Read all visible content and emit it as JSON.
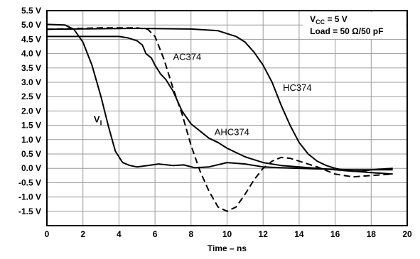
{
  "chart_data": {
    "type": "line",
    "xlabel": "Time – ns",
    "ylabel": "",
    "xlim": [
      0,
      20
    ],
    "ylim": [
      -2,
      5.5
    ],
    "x_ticks": [
      0,
      2,
      4,
      6,
      8,
      10,
      12,
      14,
      16,
      18,
      20
    ],
    "x_tick_labels": [
      "0",
      "2",
      "4",
      "6",
      "8",
      "10",
      "12",
      "14",
      "16",
      "18",
      "20"
    ],
    "y_ticks": [
      5.5,
      5.0,
      4.5,
      4.0,
      3.5,
      3.0,
      2.5,
      2.0,
      1.5,
      1.0,
      0.5,
      0.0,
      -0.5,
      -1.0,
      -1.5
    ],
    "y_tick_labels": [
      "5.5 V",
      "5.0 V",
      "4.5 V",
      "4.0 V",
      "3.5 V",
      "3.0 V",
      "2.5 V",
      "2.0 V",
      "1.5 V",
      "1.0 V",
      "0.5 V",
      "0.0 V",
      "-0.5 V",
      "-1.0 V",
      "-1.5 V"
    ],
    "grid": true,
    "conditions": {
      "vcc_main": "V",
      "vcc_sub": "CC",
      "vcc_value": " = 5 V",
      "load": "Load = 50 Ω/50 pF"
    },
    "series": [
      {
        "name": "VI",
        "label_main": "V",
        "label_sub": "I",
        "label_at": [
          2.6,
          1.6
        ],
        "style": "solid",
        "color": "#000000",
        "points": [
          [
            0,
            5.02
          ],
          [
            1.0,
            5.0
          ],
          [
            1.5,
            4.85
          ],
          [
            2.0,
            4.4
          ],
          [
            2.5,
            3.6
          ],
          [
            3.0,
            2.5
          ],
          [
            3.4,
            1.5
          ],
          [
            3.8,
            0.6
          ],
          [
            4.2,
            0.2
          ],
          [
            4.6,
            0.1
          ],
          [
            5.0,
            0.05
          ],
          [
            5.6,
            0.1
          ],
          [
            6.2,
            0.15
          ],
          [
            7.0,
            0.1
          ],
          [
            7.6,
            0.12
          ],
          [
            8.2,
            0.02
          ],
          [
            9.0,
            0.05
          ],
          [
            10.0,
            0.2
          ],
          [
            11.0,
            0.15
          ],
          [
            12.0,
            0.05
          ],
          [
            13.0,
            0.02
          ],
          [
            15.0,
            -0.02
          ],
          [
            17.0,
            -0.05
          ],
          [
            19.2,
            -0.05
          ]
        ]
      },
      {
        "name": "AC374",
        "label_main": "AC374",
        "label_at": [
          7.0,
          3.78
        ],
        "style": "dashed",
        "color": "#000000",
        "points": [
          [
            0,
            4.85
          ],
          [
            3.0,
            4.9
          ],
          [
            5.0,
            4.9
          ],
          [
            5.6,
            4.85
          ],
          [
            6.0,
            4.6
          ],
          [
            6.5,
            3.8
          ],
          [
            7.0,
            2.8
          ],
          [
            7.5,
            1.9
          ],
          [
            8.0,
            0.8
          ],
          [
            8.5,
            -0.1
          ],
          [
            9.0,
            -0.8
          ],
          [
            9.5,
            -1.35
          ],
          [
            10.0,
            -1.5
          ],
          [
            10.5,
            -1.35
          ],
          [
            11.0,
            -0.9
          ],
          [
            11.5,
            -0.4
          ],
          [
            12.0,
            0.0
          ],
          [
            12.5,
            0.25
          ],
          [
            13.0,
            0.38
          ],
          [
            13.5,
            0.35
          ],
          [
            14.0,
            0.25
          ],
          [
            15.0,
            0.05
          ],
          [
            16.0,
            -0.2
          ],
          [
            17.0,
            -0.3
          ],
          [
            18.0,
            -0.25
          ],
          [
            19.2,
            -0.2
          ]
        ]
      },
      {
        "name": "HC374",
        "label_main": "HC374",
        "label_at": [
          13.1,
          2.7
        ],
        "style": "solid",
        "color": "#000000",
        "points": [
          [
            0,
            4.85
          ],
          [
            5.0,
            4.88
          ],
          [
            8.0,
            4.86
          ],
          [
            9.5,
            4.8
          ],
          [
            10.5,
            4.6
          ],
          [
            11.0,
            4.4
          ],
          [
            11.5,
            4.05
          ],
          [
            12.0,
            3.6
          ],
          [
            12.5,
            3.0
          ],
          [
            13.0,
            2.2
          ],
          [
            13.5,
            1.5
          ],
          [
            14.0,
            0.9
          ],
          [
            14.5,
            0.5
          ],
          [
            15.0,
            0.25
          ],
          [
            15.5,
            0.1
          ],
          [
            16.0,
            0.0
          ],
          [
            16.5,
            -0.08
          ],
          [
            17.0,
            -0.1
          ],
          [
            17.5,
            -0.1
          ],
          [
            18.0,
            -0.05
          ],
          [
            19.2,
            0.0
          ]
        ]
      },
      {
        "name": "AHC374",
        "label_main": "AHC374",
        "label_at": [
          9.3,
          1.15
        ],
        "style": "solid",
        "color": "#000000",
        "points": [
          [
            0,
            4.6
          ],
          [
            4.0,
            4.6
          ],
          [
            4.5,
            4.55
          ],
          [
            5.0,
            4.45
          ],
          [
            5.3,
            4.3
          ],
          [
            5.5,
            4.0
          ],
          [
            5.8,
            3.85
          ],
          [
            6.0,
            3.6
          ],
          [
            6.3,
            3.3
          ],
          [
            6.6,
            3.1
          ],
          [
            7.0,
            2.7
          ],
          [
            7.5,
            2.0
          ],
          [
            8.0,
            1.55
          ],
          [
            8.5,
            1.3
          ],
          [
            9.0,
            1.05
          ],
          [
            9.5,
            0.9
          ],
          [
            10.0,
            0.7
          ],
          [
            10.5,
            0.55
          ],
          [
            11.0,
            0.4
          ],
          [
            11.5,
            0.3
          ],
          [
            12.0,
            0.2
          ],
          [
            13.0,
            0.1
          ],
          [
            14.0,
            0.05
          ],
          [
            15.0,
            0.0
          ],
          [
            16.0,
            -0.05
          ],
          [
            17.0,
            -0.1
          ],
          [
            18.0,
            -0.15
          ],
          [
            19.2,
            -0.2
          ]
        ]
      }
    ]
  }
}
